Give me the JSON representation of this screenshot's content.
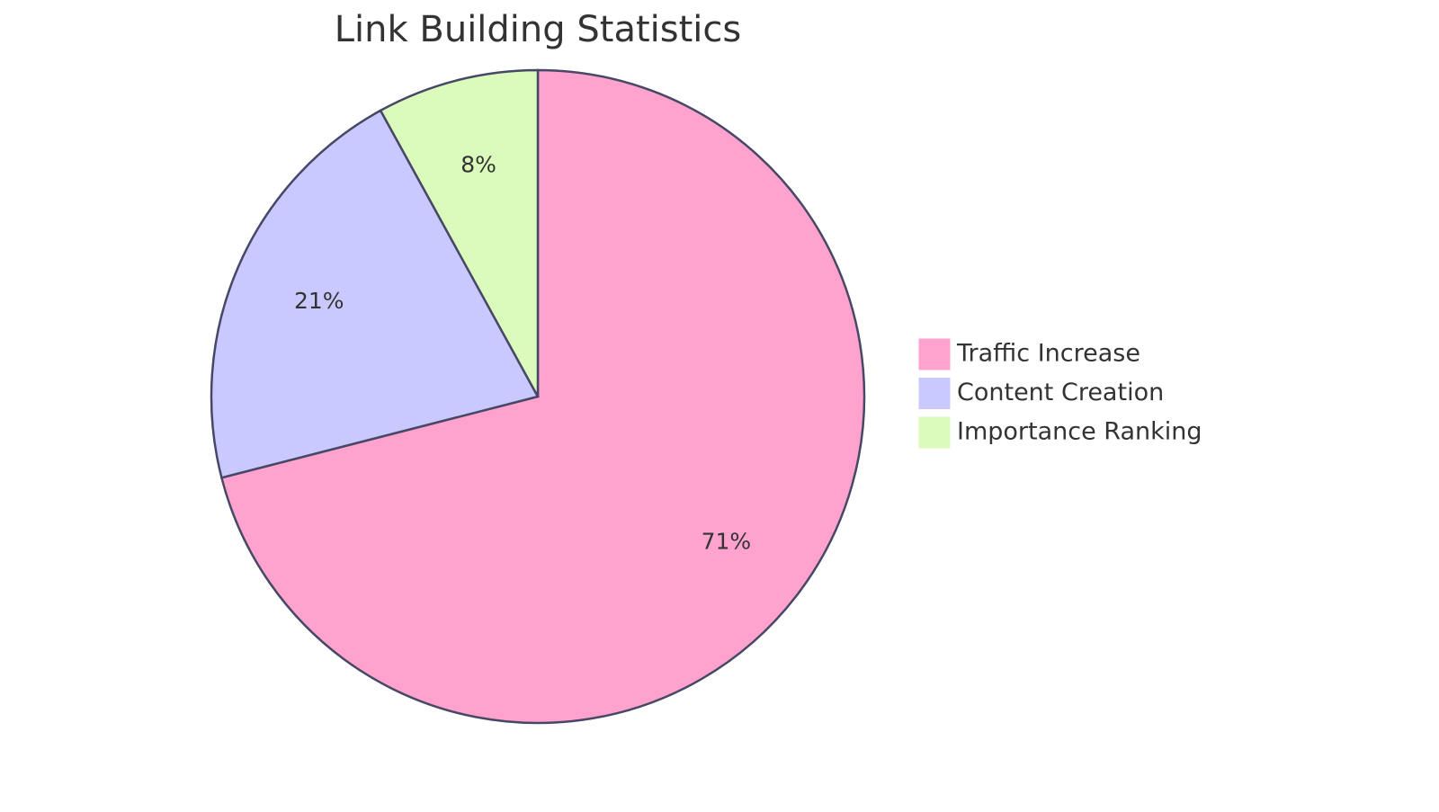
{
  "chart_data": {
    "type": "pie",
    "title": "Link Building Statistics",
    "categories": [
      "Traffic Increase",
      "Content Creation",
      "Importance Ranking"
    ],
    "values": [
      71,
      21,
      8
    ],
    "value_labels": [
      "71%",
      "21%",
      "8%"
    ],
    "colors": [
      "#FFA3CE",
      "#C9C9FF",
      "#DAFBBB"
    ],
    "legend": "right"
  }
}
